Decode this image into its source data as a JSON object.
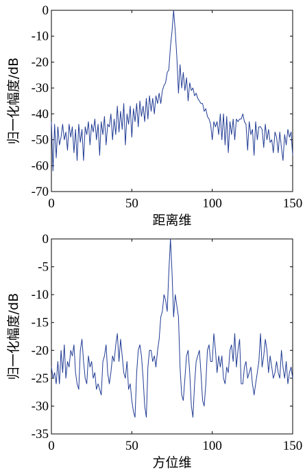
{
  "chart_data": [
    {
      "type": "line",
      "title": "",
      "xlabel": "距离维",
      "ylabel": "归一化幅度/dB",
      "xlim": [
        0,
        150
      ],
      "ylim": [
        -70,
        0
      ],
      "xticks": [
        "0",
        "50",
        "100",
        "150"
      ],
      "yticks": [
        "0",
        "-10",
        "-20",
        "-30",
        "-40",
        "-50",
        "-60",
        "-70"
      ],
      "xtick_values": [
        0,
        50,
        100,
        150
      ],
      "ytick_values": [
        0,
        -10,
        -20,
        -30,
        -40,
        -50,
        -60,
        -70
      ],
      "grid": false,
      "color": "#1f3a93",
      "series": [
        {
          "x": [
            0,
            1,
            2,
            3,
            4,
            5,
            6,
            7,
            8,
            9,
            10,
            11,
            12,
            13,
            14,
            15,
            16,
            17,
            18,
            19,
            20,
            21,
            22,
            23,
            24,
            25,
            26,
            27,
            28,
            29,
            30,
            31,
            32,
            33,
            34,
            35,
            36,
            37,
            38,
            39,
            40,
            41,
            42,
            43,
            44,
            45,
            46,
            47,
            48,
            49,
            50,
            51,
            52,
            53,
            54,
            55,
            56,
            57,
            58,
            59,
            60,
            61,
            62,
            63,
            64,
            65,
            66,
            67,
            68,
            69,
            70,
            71,
            72,
            73,
            74,
            75,
            76,
            77,
            78,
            79,
            80,
            81,
            82,
            83,
            84,
            85,
            86,
            87,
            88,
            89,
            90,
            91,
            92,
            93,
            94,
            95,
            96,
            97,
            98,
            99,
            100,
            101,
            102,
            103,
            104,
            105,
            106,
            107,
            108,
            109,
            110,
            111,
            112,
            113,
            114,
            115,
            116,
            117,
            118,
            119,
            120,
            121,
            122,
            123,
            124,
            125,
            126,
            127,
            128,
            129,
            130,
            131,
            132,
            133,
            134,
            135,
            136,
            137,
            138,
            139,
            140,
            141,
            142,
            143,
            144,
            145,
            146,
            147,
            148,
            149,
            150
          ],
          "values": [
            -43,
            -62,
            -44,
            -57,
            -45,
            -52,
            -49,
            -44,
            -50,
            -47,
            -54,
            -44,
            -49,
            -45,
            -55,
            -46,
            -58,
            -44,
            -51,
            -46,
            -58,
            -45,
            -48,
            -43,
            -52,
            -44,
            -47,
            -42,
            -50,
            -44,
            -56,
            -43,
            -48,
            -41,
            -52,
            -44,
            -45,
            -40,
            -50,
            -42,
            -48,
            -37,
            -47,
            -39,
            -46,
            -36,
            -52,
            -40,
            -44,
            -37,
            -49,
            -38,
            -43,
            -36,
            -45,
            -35,
            -41,
            -37,
            -43,
            -34,
            -42,
            -33,
            -39,
            -34,
            -40,
            -33,
            -36,
            -32,
            -36,
            -31,
            -29,
            -28,
            -24,
            -23,
            -14,
            -8,
            0,
            -8,
            -18,
            -32,
            -21,
            -30,
            -24,
            -31,
            -26,
            -35,
            -28,
            -31,
            -30,
            -33,
            -32,
            -34,
            -35,
            -36,
            -36,
            -39,
            -38,
            -41,
            -42,
            -44,
            -50,
            -43,
            -45,
            -43,
            -48,
            -40,
            -50,
            -40,
            -52,
            -41,
            -55,
            -43,
            -48,
            -42,
            -50,
            -42,
            -43,
            -42,
            -42,
            -40,
            -43,
            -44,
            -54,
            -43,
            -48,
            -46,
            -56,
            -43,
            -50,
            -45,
            -45,
            -46,
            -53,
            -44,
            -50,
            -46,
            -51,
            -50,
            -55,
            -47,
            -49,
            -55,
            -47,
            -53,
            -58,
            -48,
            -52,
            -46,
            -49,
            -47,
            -56
          ]
        }
      ]
    },
    {
      "type": "line",
      "title": "",
      "xlabel": "方位维",
      "ylabel": "归一化幅度/dB",
      "xlim": [
        0,
        150
      ],
      "ylim": [
        -35,
        0
      ],
      "xticks": [
        "0",
        "50",
        "100",
        "150"
      ],
      "yticks": [
        "0",
        "-5",
        "-10",
        "-15",
        "-20",
        "-25",
        "-30",
        "-35"
      ],
      "xtick_values": [
        0,
        50,
        100,
        150
      ],
      "ytick_values": [
        0,
        -5,
        -10,
        -15,
        -20,
        -25,
        -30,
        -35
      ],
      "grid": false,
      "color": "#1f3a93",
      "series": [
        {
          "x": [
            0,
            1,
            2,
            3,
            4,
            5,
            6,
            7,
            8,
            9,
            10,
            11,
            12,
            13,
            14,
            15,
            16,
            17,
            18,
            19,
            20,
            21,
            22,
            23,
            24,
            25,
            26,
            27,
            28,
            29,
            30,
            31,
            32,
            33,
            34,
            35,
            36,
            37,
            38,
            39,
            40,
            41,
            42,
            43,
            44,
            45,
            46,
            47,
            48,
            49,
            50,
            51,
            52,
            53,
            54,
            55,
            56,
            57,
            58,
            59,
            60,
            61,
            62,
            63,
            64,
            65,
            66,
            67,
            68,
            69,
            70,
            71,
            72,
            73,
            74,
            75,
            76,
            77,
            78,
            79,
            80,
            81,
            82,
            83,
            84,
            85,
            86,
            87,
            88,
            89,
            90,
            91,
            92,
            93,
            94,
            95,
            96,
            97,
            98,
            99,
            100,
            101,
            102,
            103,
            104,
            105,
            106,
            107,
            108,
            109,
            110,
            111,
            112,
            113,
            114,
            115,
            116,
            117,
            118,
            119,
            120,
            121,
            122,
            123,
            124,
            125,
            126,
            127,
            128,
            129,
            130,
            131,
            132,
            133,
            134,
            135,
            136,
            137,
            138,
            139,
            140,
            141,
            142,
            143,
            144,
            145,
            146,
            147,
            148,
            149,
            150
          ],
          "values": [
            -23,
            -25,
            -24,
            -26,
            -22,
            -26,
            -20,
            -24,
            -19,
            -25,
            -22,
            -23,
            -20,
            -21,
            -19,
            -24,
            -26,
            -27,
            -20,
            -18,
            -22,
            -25,
            -26,
            -21,
            -23,
            -22,
            -25,
            -24,
            -27,
            -26,
            -27,
            -28,
            -22,
            -21,
            -19,
            -24,
            -26,
            -24,
            -21,
            -22,
            -19,
            -17,
            -22,
            -18,
            -21,
            -24,
            -25,
            -22,
            -27,
            -26,
            -29,
            -31,
            -32,
            -24,
            -20,
            -19,
            -21,
            -25,
            -30,
            -32,
            -23,
            -20,
            -20,
            -22,
            -21,
            -23,
            -20,
            -18,
            -14,
            -13,
            -10,
            -11,
            -13,
            -6,
            0,
            -6,
            -14,
            -10,
            -12,
            -14,
            -23,
            -28,
            -29,
            -25,
            -21,
            -20,
            -24,
            -30,
            -32,
            -26,
            -22,
            -21,
            -20,
            -24,
            -29,
            -30,
            -26,
            -20,
            -19,
            -22,
            -22,
            -17,
            -20,
            -24,
            -21,
            -23,
            -21,
            -25,
            -26,
            -23,
            -24,
            -20,
            -19,
            -22,
            -17,
            -23,
            -20,
            -18,
            -26,
            -26,
            -23,
            -22,
            -25,
            -24,
            -23,
            -26,
            -28,
            -26,
            -24,
            -22,
            -17,
            -23,
            -21,
            -18,
            -20,
            -24,
            -21,
            -23,
            -25,
            -24,
            -22,
            -24,
            -25,
            -20,
            -23,
            -25,
            -22,
            -26,
            -24,
            -23,
            -25
          ]
        }
      ]
    }
  ]
}
